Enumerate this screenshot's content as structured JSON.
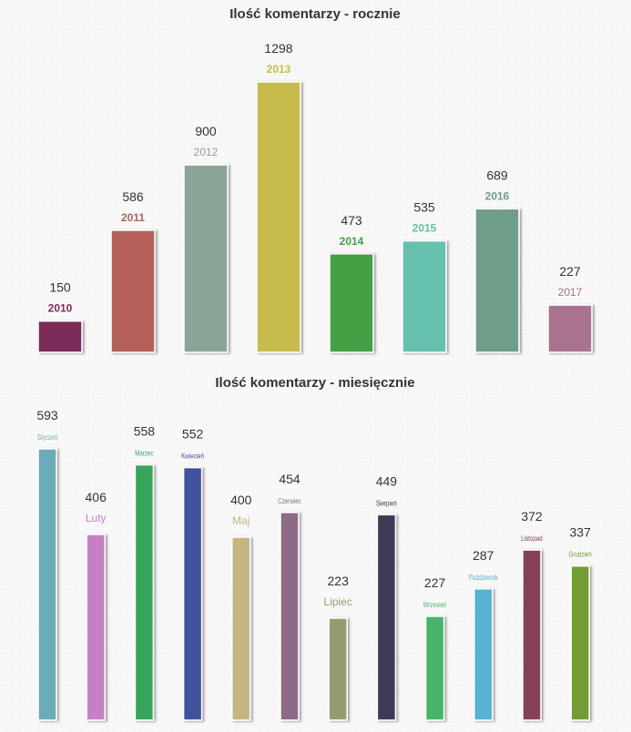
{
  "chart_data": [
    {
      "type": "bar",
      "title": "Ilość komentarzy - rocznie",
      "categories": [
        "2010",
        "2011",
        "2012",
        "2013",
        "2014",
        "2015",
        "2016",
        "2017"
      ],
      "values": [
        150,
        586,
        900,
        1298,
        473,
        535,
        689,
        227
      ],
      "colors": [
        "#7c2b58",
        "#b5605a",
        "#8aa597",
        "#c6bb4c",
        "#45a045",
        "#66c0ae",
        "#6e9e89",
        "#a9738f"
      ],
      "label_colors": [
        "#7c2b58",
        "#b5605a",
        "#8aa597",
        "#c6bb4c",
        "#45a045",
        "#66c0ae",
        "#6e9e89",
        "#a9738f"
      ],
      "label_bold": [
        true,
        true,
        false,
        true,
        true,
        true,
        true,
        false
      ],
      "xlabel": "",
      "ylabel": "",
      "ylim": [
        0,
        1298
      ],
      "grid": false,
      "legend": "none"
    },
    {
      "type": "bar",
      "title": "Ilość komentarzy - miesięcznie",
      "categories": [
        "Styczeń",
        "Luty",
        "Marzec",
        "Kwiecień",
        "Maj",
        "Czerwiec",
        "Lipiec",
        "Sierpień",
        "Wrzesień",
        "Październik",
        "Listopad",
        "Grudzień"
      ],
      "values": [
        593,
        406,
        558,
        552,
        400,
        454,
        223,
        449,
        227,
        287,
        372,
        337
      ],
      "colors": [
        "#6cabb8",
        "#c77fc6",
        "#37a65a",
        "#41539a",
        "#c4b583",
        "#8d6a88",
        "#979b70",
        "#3b3a52",
        "#49b469",
        "#58b0d2",
        "#864355",
        "#739c33"
      ],
      "label_colors": [
        "#6cabb8",
        "#c77fc6",
        "#37a65a",
        "#41539a",
        "#c4b583",
        "#8d6a88",
        "#979b70",
        "#3b3a52",
        "#49b469",
        "#58b0d2",
        "#864355",
        "#739c33"
      ],
      "label_size": [
        "small",
        "big",
        "small",
        "small",
        "big",
        "small",
        "big",
        "small",
        "small",
        "small",
        "small",
        "small"
      ],
      "xlabel": "",
      "ylabel": "",
      "ylim": [
        0,
        593
      ],
      "grid": false,
      "legend": "none"
    }
  ]
}
